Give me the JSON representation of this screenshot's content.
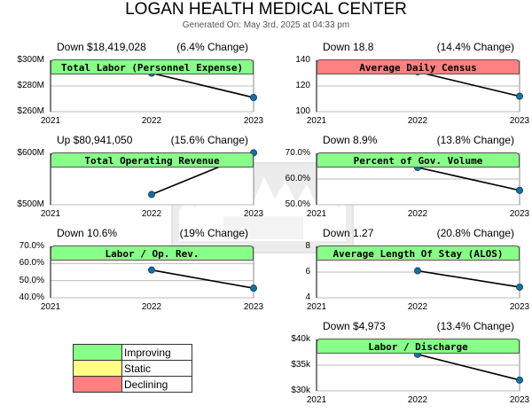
{
  "header": {
    "title": "LOGAN HEALTH MEDICAL CENTER",
    "generated": "Generated On: May 3rd, 2025 at 04:33 pm"
  },
  "colors": {
    "improving": "#88ff88",
    "static": "#ffff88",
    "declining": "#ff8080",
    "line": "#000000",
    "point": "#1a6e9e",
    "grid": "#bbbbbb"
  },
  "legend": [
    {
      "label": "Improving",
      "status": "improving"
    },
    {
      "label": "Static",
      "status": "static"
    },
    {
      "label": "Declining",
      "status": "declining"
    }
  ],
  "chart_data": [
    {
      "type": "line",
      "title": "Total Labor (Personnel Expense)",
      "status": "improving",
      "summary_left": "Down $18,419,028",
      "summary_right": "(6.4% Change)",
      "categories": [
        "2021",
        "2022",
        "2023"
      ],
      "values": [
        null,
        290,
        271
      ],
      "ylim": [
        260,
        300
      ],
      "yticks": [
        260,
        280,
        300
      ],
      "ytick_labels": [
        "$260M",
        "$280M",
        "$300M"
      ],
      "grid": true
    },
    {
      "type": "line",
      "title": "Average Daily Census",
      "status": "declining",
      "summary_left": "Down 18.8",
      "summary_right": "(14.4% Change)",
      "categories": [
        "2021",
        "2022",
        "2023"
      ],
      "values": [
        null,
        131,
        112
      ],
      "ylim": [
        100,
        140
      ],
      "yticks": [
        100,
        120,
        140
      ],
      "ytick_labels": [
        "100",
        "120",
        "140"
      ],
      "grid": true
    },
    {
      "type": "line",
      "title": "Total Operating Revenue",
      "status": "improving",
      "summary_left": "Up $80,941,050",
      "summary_right": "(15.6% Change)",
      "categories": [
        "2021",
        "2022",
        "2023"
      ],
      "values": [
        null,
        520,
        601
      ],
      "ylim": [
        500,
        600
      ],
      "yticks": [
        500,
        600
      ],
      "ytick_labels": [
        "$500M",
        "$600M"
      ],
      "grid": true
    },
    {
      "type": "line",
      "title": "Percent of Gov. Volume",
      "status": "improving",
      "summary_left": "Down 8.9%",
      "summary_right": "(13.8% Change)",
      "categories": [
        "2021",
        "2022",
        "2023"
      ],
      "values": [
        null,
        64.5,
        55.6
      ],
      "ylim": [
        50,
        70
      ],
      "yticks": [
        50,
        60,
        70
      ],
      "ytick_labels": [
        "50.0%",
        "60.0%",
        "70.0%"
      ],
      "grid": true
    },
    {
      "type": "line",
      "title": "Labor / Op. Rev.",
      "status": "improving",
      "summary_left": "Down 10.6%",
      "summary_right": "(19% Change)",
      "categories": [
        "2021",
        "2022",
        "2023"
      ],
      "values": [
        null,
        56.2,
        45.6
      ],
      "ylim": [
        40,
        70
      ],
      "yticks": [
        40,
        50,
        60,
        70
      ],
      "ytick_labels": [
        "40.0%",
        "50.0%",
        "60.0%",
        "70.0%"
      ],
      "grid": true
    },
    {
      "type": "line",
      "title": "Average Length Of Stay (ALOS)",
      "status": "improving",
      "summary_left": "Down 1.27",
      "summary_right": "(20.8% Change)",
      "categories": [
        "2021",
        "2022",
        "2023"
      ],
      "values": [
        null,
        6.1,
        4.83
      ],
      "ylim": [
        4,
        8
      ],
      "yticks": [
        4,
        6,
        8
      ],
      "ytick_labels": [
        "4",
        "6",
        "8"
      ],
      "grid": true
    },
    {
      "type": "line",
      "title": "Labor / Discharge",
      "status": "improving",
      "summary_left": "Down $4,973",
      "summary_right": "(13.4% Change)",
      "categories": [
        "2021",
        "2022",
        "2023"
      ],
      "values": [
        null,
        37100,
        32100
      ],
      "ylim": [
        30000,
        40000
      ],
      "yticks": [
        30000,
        35000,
        40000
      ],
      "ytick_labels": [
        "$30k",
        "$35k",
        "$40k"
      ],
      "grid": true
    }
  ]
}
